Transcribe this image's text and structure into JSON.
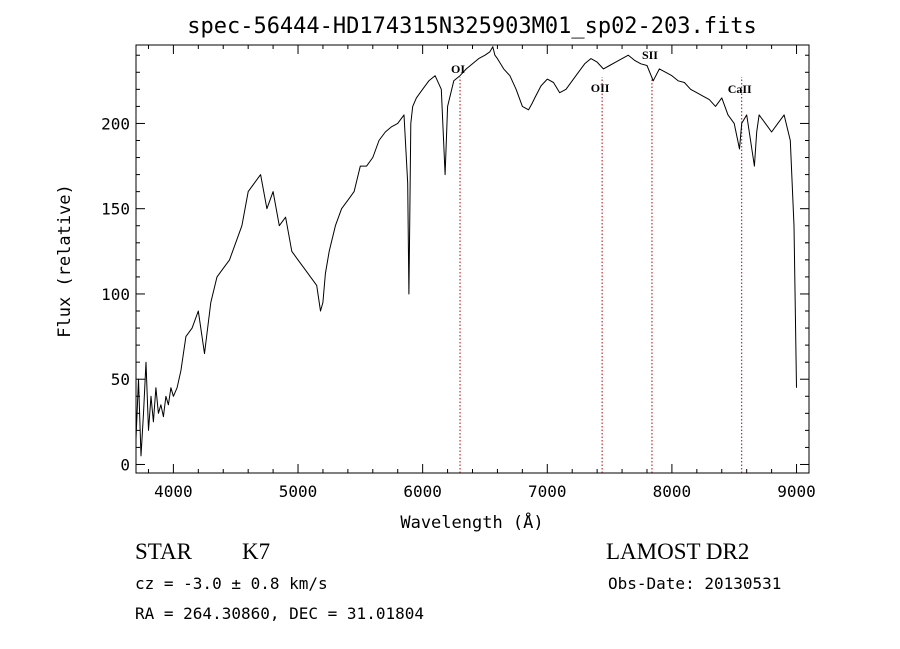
{
  "chart_data": {
    "type": "line",
    "title": "spec-56444-HD174315N325903M01_sp02-203.fits",
    "xlabel": "Wavelength (Å)",
    "ylabel": "Flux (relative)",
    "xlim": [
      3700,
      9100
    ],
    "ylim": [
      -5,
      246
    ],
    "xticks": [
      4000,
      5000,
      6000,
      7000,
      8000,
      9000
    ],
    "yticks": [
      0,
      50,
      100,
      150,
      200
    ],
    "grid": false,
    "legend": "none",
    "series": [
      {
        "x": [
          3700,
          3720,
          3740,
          3760,
          3780,
          3800,
          3820,
          3840,
          3860,
          3880,
          3900,
          3920,
          3940,
          3960,
          3980,
          4000,
          4030,
          4060,
          4100,
          4150,
          4200,
          4250,
          4300,
          4350,
          4400,
          4450,
          4500,
          4550,
          4600,
          4650,
          4700,
          4750,
          4800,
          4850,
          4900,
          4950,
          5000,
          5050,
          5100,
          5150,
          5180,
          5200,
          5220,
          5250,
          5300,
          5350,
          5400,
          5450,
          5500,
          5550,
          5600,
          5650,
          5700,
          5750,
          5800,
          5850,
          5880,
          5890,
          5896,
          5905,
          5920,
          5950,
          6000,
          6050,
          6100,
          6150,
          6180,
          6200,
          6250,
          6300,
          6350,
          6400,
          6450,
          6500,
          6540,
          6563,
          6580,
          6600,
          6650,
          6700,
          6750,
          6800,
          6850,
          6880,
          6900,
          6950,
          7000,
          7050,
          7100,
          7150,
          7200,
          7250,
          7300,
          7350,
          7400,
          7450,
          7500,
          7550,
          7600,
          7650,
          7700,
          7750,
          7800,
          7850,
          7900,
          7950,
          8000,
          8050,
          8100,
          8150,
          8200,
          8250,
          8300,
          8350,
          8400,
          8450,
          8500,
          8542,
          8560,
          8600,
          8662,
          8680,
          8700,
          8750,
          8800,
          8850,
          8900,
          8950,
          8980,
          9000
        ],
        "values": [
          15,
          50,
          5,
          30,
          60,
          20,
          40,
          25,
          45,
          30,
          35,
          28,
          40,
          35,
          45,
          40,
          45,
          55,
          75,
          80,
          90,
          65,
          95,
          110,
          115,
          120,
          130,
          140,
          160,
          165,
          170,
          150,
          160,
          140,
          145,
          125,
          120,
          115,
          110,
          105,
          90,
          95,
          112,
          125,
          140,
          150,
          155,
          160,
          175,
          175,
          180,
          190,
          195,
          198,
          200,
          205,
          165,
          100,
          140,
          200,
          210,
          215,
          220,
          225,
          228,
          220,
          170,
          210,
          225,
          228,
          232,
          235,
          238,
          240,
          242,
          245,
          240,
          238,
          232,
          228,
          220,
          210,
          208,
          212,
          215,
          222,
          226,
          224,
          218,
          220,
          225,
          230,
          235,
          238,
          236,
          232,
          234,
          236,
          238,
          240,
          237,
          235,
          234,
          225,
          232,
          230,
          228,
          225,
          224,
          220,
          218,
          216,
          214,
          210,
          215,
          205,
          200,
          185,
          200,
          205,
          175,
          195,
          205,
          200,
          195,
          200,
          205,
          190,
          140,
          45
        ]
      }
    ],
    "annotations": [
      {
        "label": "OI",
        "x": 6300
      },
      {
        "label": "OII",
        "x": 7440
      },
      {
        "label": "SII",
        "x": 7840
      },
      {
        "label": "CaII",
        "x": 8560
      }
    ]
  },
  "info": {
    "object_type": "STAR",
    "subclass": "K7",
    "survey": "LAMOST DR2",
    "redshift": "cz = -3.0 ± 0.8 km/s",
    "obs_date": "Obs-Date: 20130531",
    "coordinates": "RA = 264.30860, DEC =  31.01804"
  },
  "colors": {
    "line": "#000000",
    "marker": "#c00000"
  }
}
